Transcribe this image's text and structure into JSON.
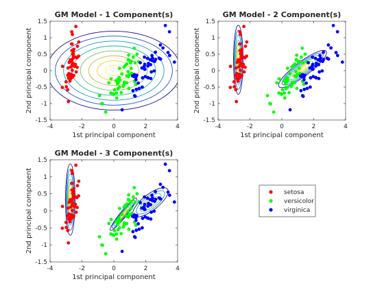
{
  "chart_data": {
    "type": "scatter",
    "legend": {
      "position": "bottom-right",
      "entries": [
        "setosa",
        "versicolor",
        "virginica"
      ]
    },
    "species_colors": {
      "setosa": "#ff0000",
      "versicolor": "#00ff00",
      "virginica": "#0000ff"
    },
    "contour_colors": [
      "#1a0a8c",
      "#1f3fd0",
      "#1a7fd6",
      "#10a8c8",
      "#1dbb9a",
      "#62c264",
      "#a8bc3a",
      "#e0b830",
      "#fadc20",
      "#ffee40"
    ],
    "points": {
      "setosa": [
        [
          -2.68,
          0.32
        ],
        [
          -2.71,
          -0.18
        ],
        [
          -2.89,
          -0.14
        ],
        [
          -2.75,
          -0.32
        ],
        [
          -2.73,
          0.33
        ],
        [
          -2.28,
          0.74
        ],
        [
          -2.82,
          -0.09
        ],
        [
          -2.63,
          0.16
        ],
        [
          -2.89,
          -0.58
        ],
        [
          -2.67,
          -0.11
        ],
        [
          -2.51,
          0.65
        ],
        [
          -2.61,
          0.01
        ],
        [
          -2.79,
          -0.24
        ],
        [
          -3.23,
          -0.51
        ],
        [
          -2.64,
          1.18
        ],
        [
          -2.38,
          1.34
        ],
        [
          -2.62,
          0.81
        ],
        [
          -2.65,
          0.31
        ],
        [
          -2.2,
          0.87
        ],
        [
          -2.59,
          0.51
        ],
        [
          -2.31,
          0.39
        ],
        [
          -2.54,
          0.43
        ],
        [
          -3.22,
          0.13
        ],
        [
          -2.3,
          0.1
        ],
        [
          -2.36,
          -0.04
        ],
        [
          -2.51,
          -0.15
        ],
        [
          -2.47,
          0.13
        ],
        [
          -2.56,
          0.37
        ],
        [
          -2.64,
          0.31
        ],
        [
          -2.63,
          -0.2
        ],
        [
          -2.59,
          -0.2
        ],
        [
          -2.41,
          0.41
        ],
        [
          -2.65,
          0.81
        ],
        [
          -2.6,
          1.1
        ],
        [
          -2.67,
          -0.11
        ],
        [
          -2.87,
          0.08
        ],
        [
          -2.63,
          0.61
        ],
        [
          -2.8,
          0.25
        ],
        [
          -2.98,
          -0.49
        ],
        [
          -2.59,
          0.23
        ],
        [
          -2.77,
          0.27
        ],
        [
          -2.85,
          -0.94
        ],
        [
          -3.0,
          -0.34
        ],
        [
          -2.41,
          0.19
        ],
        [
          -2.21,
          0.44
        ],
        [
          -2.72,
          -0.25
        ],
        [
          -2.54,
          0.5
        ],
        [
          -2.84,
          -0.23
        ],
        [
          -2.54,
          0.58
        ],
        [
          -2.7,
          0.11
        ]
      ],
      "versicolor": [
        [
          1.28,
          0.68
        ],
        [
          0.93,
          0.32
        ],
        [
          1.46,
          0.5
        ],
        [
          0.18,
          -0.83
        ],
        [
          1.09,
          0.07
        ],
        [
          0.64,
          -0.42
        ],
        [
          1.1,
          0.28
        ],
        [
          -0.75,
          -1.0
        ],
        [
          1.04,
          0.23
        ],
        [
          -0.01,
          -0.72
        ],
        [
          -0.51,
          -1.26
        ],
        [
          0.51,
          -0.1
        ],
        [
          0.26,
          -0.55
        ],
        [
          0.98,
          -0.12
        ],
        [
          -0.17,
          -0.25
        ],
        [
          0.93,
          0.47
        ],
        [
          0.66,
          -0.35
        ],
        [
          0.23,
          -0.33
        ],
        [
          0.94,
          -0.54
        ],
        [
          0.04,
          -0.58
        ],
        [
          1.12,
          -0.08
        ],
        [
          0.36,
          0.07
        ],
        [
          1.3,
          -0.33
        ],
        [
          0.92,
          -0.18
        ],
        [
          0.71,
          0.15
        ],
        [
          0.9,
          0.33
        ],
        [
          1.33,
          0.24
        ],
        [
          1.56,
          0.27
        ],
        [
          0.81,
          -0.16
        ],
        [
          -0.31,
          -0.37
        ],
        [
          -0.07,
          -0.7
        ],
        [
          -0.19,
          -0.68
        ],
        [
          0.14,
          -0.31
        ],
        [
          1.38,
          -0.42
        ],
        [
          0.59,
          -0.48
        ],
        [
          0.81,
          0.2
        ],
        [
          1.22,
          0.41
        ],
        [
          0.81,
          -0.37
        ],
        [
          0.25,
          -0.27
        ],
        [
          0.16,
          -0.68
        ],
        [
          0.46,
          -0.67
        ],
        [
          0.89,
          -0.03
        ],
        [
          0.23,
          -0.4
        ],
        [
          -0.71,
          -1.01
        ],
        [
          0.36,
          -0.5
        ],
        [
          0.33,
          -0.21
        ],
        [
          0.38,
          -0.29
        ],
        [
          0.64,
          0.11
        ],
        [
          -0.9,
          -0.76
        ],
        [
          0.3,
          -0.35
        ]
      ],
      "virginica": [
        [
          2.53,
          -0.01
        ],
        [
          1.41,
          -0.57
        ],
        [
          2.62,
          0.34
        ],
        [
          1.97,
          -0.18
        ],
        [
          2.35,
          -0.04
        ],
        [
          3.4,
          0.55
        ],
        [
          0.52,
          -1.19
        ],
        [
          2.93,
          0.35
        ],
        [
          2.32,
          -0.24
        ],
        [
          2.92,
          0.78
        ],
        [
          1.66,
          0.24
        ],
        [
          1.8,
          -0.22
        ],
        [
          2.17,
          0.22
        ],
        [
          1.34,
          -0.78
        ],
        [
          1.59,
          -0.54
        ],
        [
          1.9,
          0.12
        ],
        [
          1.95,
          0.04
        ],
        [
          3.49,
          1.18
        ],
        [
          3.8,
          0.26
        ],
        [
          1.3,
          -0.76
        ],
        [
          2.43,
          0.38
        ],
        [
          1.2,
          -0.61
        ],
        [
          3.5,
          0.46
        ],
        [
          1.39,
          -0.2
        ],
        [
          2.28,
          0.33
        ],
        [
          2.61,
          0.56
        ],
        [
          1.26,
          -0.18
        ],
        [
          1.29,
          -0.12
        ],
        [
          2.12,
          -0.21
        ],
        [
          2.39,
          0.46
        ],
        [
          2.84,
          0.38
        ],
        [
          3.23,
          1.37
        ],
        [
          2.16,
          -0.22
        ],
        [
          1.44,
          -0.14
        ],
        [
          1.78,
          -0.5
        ],
        [
          3.08,
          0.69
        ],
        [
          2.14,
          0.14
        ],
        [
          1.91,
          0.05
        ],
        [
          1.17,
          -0.16
        ],
        [
          2.11,
          0.37
        ],
        [
          2.31,
          0.18
        ],
        [
          1.92,
          0.41
        ],
        [
          1.41,
          -0.57
        ],
        [
          2.56,
          0.28
        ],
        [
          2.42,
          0.3
        ],
        [
          1.94,
          0.19
        ],
        [
          1.53,
          -0.38
        ],
        [
          1.76,
          0.08
        ],
        [
          1.9,
          0.12
        ],
        [
          1.39,
          -0.28
        ]
      ]
    },
    "subplots": [
      {
        "title": "GM Model - 1 Component(s)",
        "xlabel": "1st principal component",
        "ylabel": "2nd principal component",
        "xlim": [
          -4,
          4
        ],
        "ylim": [
          -1.5,
          1.5
        ],
        "xticks": [
          "-4",
          "-2",
          "0",
          "2",
          "4"
        ],
        "yticks": [
          "-1.5",
          "-1",
          "-0.5",
          "0",
          "0.5",
          "1",
          "1.5"
        ],
        "components": [
          {
            "center": [
              0,
              0
            ],
            "rx": 4.2,
            "ry": 1.2,
            "levels": 8,
            "rotation_deg": 0
          }
        ]
      },
      {
        "title": "GM Model - 2 Component(s)",
        "xlabel": "1st principal component",
        "ylabel": "2nd principal component",
        "xlim": [
          -4,
          4
        ],
        "ylim": [
          -1.5,
          1.5
        ],
        "xticks": [
          "-4",
          "-2",
          "0",
          "2",
          "4"
        ],
        "yticks": [
          "-1.5",
          "-1",
          "-0.5",
          "0",
          "0.5",
          "1",
          "1.5"
        ],
        "components": [
          {
            "center": [
              -2.73,
              0.33
            ],
            "rx": 0.3,
            "ry": 1.05,
            "levels": 7,
            "rotation_deg": 0
          },
          {
            "center": [
              1.3,
              0.05
            ],
            "rx": 1.85,
            "ry": 0.45,
            "levels": 7,
            "rotation_deg": 20
          }
        ]
      },
      {
        "title": "GM Model - 3 Component(s)",
        "xlabel": "1st principal component",
        "ylabel": "2nd principal component",
        "xlim": [
          -4,
          4
        ],
        "ylim": [
          -1.5,
          1.5
        ],
        "xticks": [
          "-4",
          "-2",
          "0",
          "2",
          "4"
        ],
        "yticks": [
          "-1.5",
          "-1",
          "-0.5",
          "0",
          "0.5",
          "1",
          "1.5"
        ],
        "components": [
          {
            "center": [
              -2.73,
              0.33
            ],
            "rx": 0.3,
            "ry": 1.05,
            "levels": 7,
            "rotation_deg": 0
          },
          {
            "center": [
              0.6,
              -0.1
            ],
            "rx": 1.3,
            "ry": 0.2,
            "levels": 7,
            "rotation_deg": 30
          },
          {
            "center": [
              2.3,
              0.25
            ],
            "rx": 1.35,
            "ry": 0.5,
            "levels": 5,
            "rotation_deg": 20
          }
        ]
      }
    ]
  }
}
